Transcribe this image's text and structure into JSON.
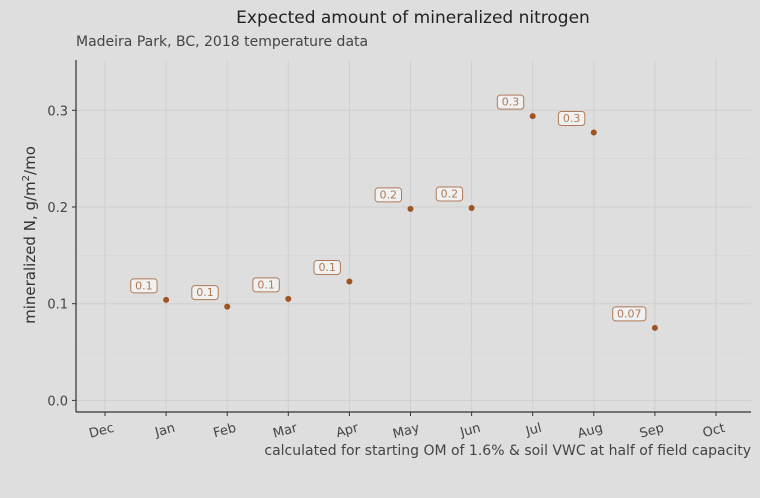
{
  "chart_data": {
    "type": "scatter",
    "title": "Expected amount of mineralized nitrogen",
    "subtitle": "Madeira Park, BC, 2018 temperature data",
    "caption": "calculated for starting OM of 1.6% & soil VWC at half of field capacity",
    "ylabel": "mineralized N, g/m",
    "ylabel_superscript": "2",
    "ylabel_suffix": "/mo",
    "xlabel": "",
    "x_ticks": [
      "Dec",
      "Jan",
      "Feb",
      "Mar",
      "Apr",
      "May",
      "Jun",
      "Jul",
      "Aug",
      "Sep",
      "Oct"
    ],
    "y_ticks": [
      0.0,
      0.1,
      0.2,
      0.3
    ],
    "y_tick_labels": [
      "0.0",
      "0.1",
      "0.2",
      "0.3"
    ],
    "ylim": [
      -0.012,
      0.352
    ],
    "grid": true,
    "legend": "none",
    "point_color": "#a0541f",
    "label_color": "#b07a58",
    "points": [
      {
        "x": "Jan",
        "y": 0.104,
        "label": "0.1"
      },
      {
        "x": "Feb",
        "y": 0.097,
        "label": "0.1"
      },
      {
        "x": "Mar",
        "y": 0.105,
        "label": "0.1"
      },
      {
        "x": "Apr",
        "y": 0.123,
        "label": "0.1"
      },
      {
        "x": "May",
        "y": 0.198,
        "label": "0.2"
      },
      {
        "x": "Jun",
        "y": 0.199,
        "label": "0.2"
      },
      {
        "x": "Jul",
        "y": 0.294,
        "label": "0.3"
      },
      {
        "x": "Aug",
        "y": 0.277,
        "label": "0.3"
      },
      {
        "x": "Sep",
        "y": 0.075,
        "label": "0.07"
      }
    ]
  }
}
